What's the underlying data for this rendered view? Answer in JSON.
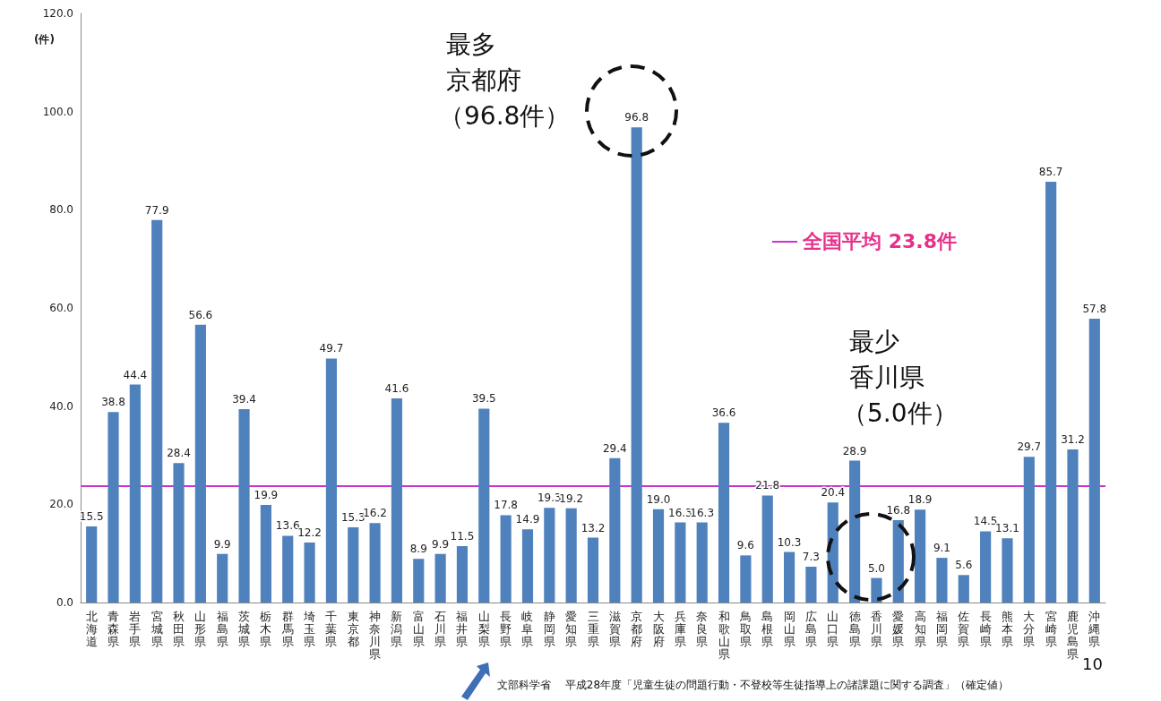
{
  "chart_data": {
    "type": "bar",
    "ylabel": "(件)",
    "categories": [
      "北海道",
      "青森県",
      "岩手県",
      "宮城県",
      "秋田県",
      "山形県",
      "福島県",
      "茨城県",
      "栃木県",
      "群馬県",
      "埼玉県",
      "千葉県",
      "東京都",
      "神奈川県",
      "新潟県",
      "富山県",
      "石川県",
      "福井県",
      "山梨県",
      "長野県",
      "岐阜県",
      "静岡県",
      "愛知県",
      "三重県",
      "滋賀県",
      "京都府",
      "大阪府",
      "兵庫県",
      "奈良県",
      "和歌山県",
      "鳥取県",
      "島根県",
      "岡山県",
      "広島県",
      "山口県",
      "徳島県",
      "香川県",
      "愛媛県",
      "高知県",
      "福岡県",
      "佐賀県",
      "長崎県",
      "熊本県",
      "大分県",
      "宮崎県",
      "鹿児島県",
      "沖縄県"
    ],
    "values": [
      15.5,
      38.8,
      44.4,
      77.9,
      28.4,
      56.6,
      9.9,
      39.4,
      19.9,
      13.6,
      12.2,
      49.7,
      15.3,
      16.2,
      41.6,
      8.9,
      9.9,
      11.5,
      39.5,
      17.8,
      14.9,
      19.3,
      19.2,
      13.2,
      29.4,
      96.8,
      19.0,
      16.3,
      16.3,
      36.6,
      9.6,
      21.8,
      10.3,
      7.3,
      20.4,
      28.9,
      5.0,
      16.8,
      18.9,
      9.1,
      5.6,
      14.5,
      13.1,
      29.7,
      85.7,
      31.2,
      57.8
    ],
    "value_labels": [
      "15.5",
      "38.8",
      "44.4",
      "77.9",
      "28.4",
      "56.6",
      "9.9",
      "39.4",
      "19.9",
      "13.6",
      "12.2",
      "49.7",
      "15.3",
      "16.2",
      "41.6",
      "8.9",
      "9.9",
      "11.5",
      "39.5",
      "17.8",
      "14.9",
      "19.3",
      "19.2",
      "13.2",
      "29.4",
      "96.8",
      "19.0",
      "16.3",
      "16.3",
      "36.6",
      "9.6",
      "21.8",
      "10.3",
      "7.3",
      "20.4",
      "28.9",
      "5.0",
      "16.8",
      "18.9",
      "9.1",
      "5.6",
      "14.5",
      "13.1",
      "29.7",
      "85.7",
      "31.2",
      "57.8"
    ],
    "color": "#4f81bd",
    "ylim": [
      0,
      120
    ],
    "yticks": [
      {
        "value": 0,
        "label": "0.0"
      },
      {
        "value": 20,
        "label": "20.0"
      },
      {
        "value": 40,
        "label": "40.0"
      },
      {
        "value": 60,
        "label": "60.0"
      },
      {
        "value": 80,
        "label": "80.0"
      },
      {
        "value": 100,
        "label": "100.0"
      },
      {
        "value": 120,
        "label": "120.0"
      }
    ],
    "ref_lines": [
      {
        "axis": "y",
        "value": 23.8,
        "label": "全国平均 23.8件",
        "color": "#cc33cc"
      }
    ],
    "annotations": [
      "最多",
      "京都府",
      "（96.8件）",
      "最少",
      "香川県",
      "（5.0件）",
      "文部科学省　 平成28年度「児童生徒の問題行動・不登校等生徒指導上の諸課題に関する調査」（確定値）",
      "10"
    ],
    "grid": false
  }
}
